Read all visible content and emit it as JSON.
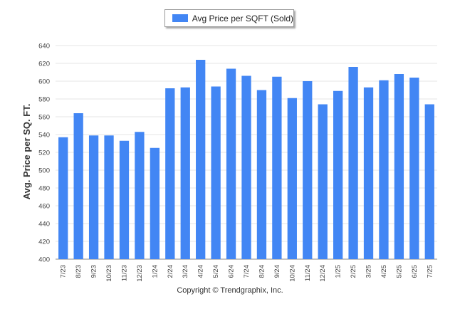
{
  "legend": {
    "label": "Avg Price per SQFT (Sold)"
  },
  "footer": {
    "copyright": "Copyright © Trendgraphix, Inc."
  },
  "colors": {
    "bar": "#4286f4",
    "grid": "#e6e6e6",
    "axis": "#888888"
  },
  "chart_data": {
    "type": "bar",
    "title": "",
    "xlabel": "",
    "ylabel": "Avg. Price per SQ. FT.",
    "ylim": [
      400,
      640
    ],
    "yticks": [
      400,
      420,
      440,
      460,
      480,
      500,
      520,
      540,
      560,
      580,
      600,
      620,
      640
    ],
    "grid": true,
    "legend_position": "top-center",
    "categories": [
      "7/23",
      "8/23",
      "9/23",
      "10/23",
      "11/23",
      "12/23",
      "1/24",
      "2/24",
      "3/24",
      "4/24",
      "5/24",
      "6/24",
      "7/24",
      "8/24",
      "9/24",
      "10/24",
      "11/24",
      "12/24",
      "1/25",
      "2/25",
      "3/25",
      "4/25",
      "5/25",
      "6/25",
      "7/25"
    ],
    "series": [
      {
        "name": "Avg Price per SQFT (Sold)",
        "values": [
          537,
          564,
          539,
          539,
          533,
          543,
          525,
          592,
          593,
          624,
          594,
          614,
          606,
          590,
          605,
          581,
          600,
          574,
          589,
          616,
          593,
          601,
          608,
          604,
          574
        ]
      }
    ]
  }
}
